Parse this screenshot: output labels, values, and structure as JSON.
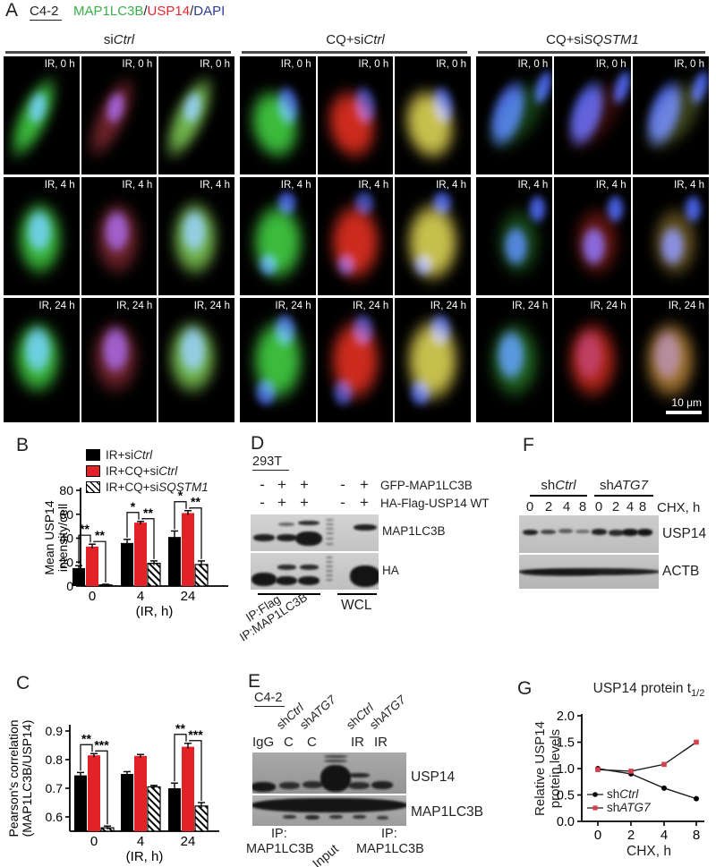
{
  "panelA": {
    "label": "A",
    "cell_line": "C4-2",
    "stain_title": [
      {
        "text": "MAP1LC3B",
        "color": "#3aaf4a"
      },
      {
        "text": "/",
        "color": "#231f20"
      },
      {
        "text": "USP14",
        "color": "#e8262d"
      },
      {
        "text": "/",
        "color": "#231f20"
      },
      {
        "text": "DAPI",
        "color": "#2e3a97"
      }
    ],
    "groups": [
      {
        "segments": [
          {
            "t": "si"
          },
          {
            "t": "Ctrl",
            "i": true
          }
        ]
      },
      {
        "segments": [
          {
            "t": "CQ+si"
          },
          {
            "t": "Ctrl",
            "i": true
          }
        ]
      },
      {
        "segments": [
          {
            "t": "CQ+si"
          },
          {
            "t": "SQSTM1",
            "i": true
          }
        ]
      }
    ],
    "row_labels": [
      "IR, 0 h",
      "IR, 4 h",
      "IR, 24 h"
    ],
    "scale_bar_label": "10 μm"
  },
  "panelB": {
    "label": "B",
    "legend": [
      {
        "swatch": "black",
        "segments": [
          {
            "t": "IR+si"
          },
          {
            "t": "Ctrl",
            "i": true
          }
        ]
      },
      {
        "swatch": "red",
        "segments": [
          {
            "t": "IR+CQ+si"
          },
          {
            "t": "Ctrl",
            "i": true
          }
        ]
      },
      {
        "swatch": "hatch",
        "segments": [
          {
            "t": "IR+CQ+si"
          },
          {
            "t": "SQSTM1",
            "i": true
          }
        ]
      }
    ]
  },
  "panelC": {
    "label": "C"
  },
  "panelD": {
    "label": "D",
    "cell_line": "293T",
    "marker_rows": [
      {
        "markers": [
          "-",
          "+",
          "+",
          "-",
          "+"
        ],
        "label": "GFP-MAP1LC3B"
      },
      {
        "markers": [
          "-",
          "+",
          "+",
          "-",
          "+"
        ],
        "label": "HA-Flag-USP14 WT"
      }
    ],
    "blot_labels": [
      "MAP1LC3B",
      "HA"
    ],
    "ip_label_1": "IP:Flag",
    "ip_label_2": "IP:MAP1LC3B",
    "wcl_label": "WCL"
  },
  "panelE": {
    "label": "E",
    "cell_line": "C4-2",
    "diag_labels": [
      [
        {
          "t": "sh"
        },
        {
          "t": "Ctrl",
          "i": true
        }
      ],
      [
        {
          "t": "sh"
        },
        {
          "t": "ATG7",
          "i": true
        }
      ],
      [
        {
          "t": "sh"
        },
        {
          "t": "Ctrl",
          "i": true
        }
      ],
      [
        {
          "t": "sh"
        },
        {
          "t": "ATG7",
          "i": true
        }
      ]
    ],
    "lane_labels": [
      "IgG",
      "C",
      "C",
      "IR",
      "IR"
    ],
    "blot_labels": [
      "USP14",
      "MAP1LC3B"
    ],
    "bottom_left_line1": "IP:",
    "bottom_left_line2": "MAP1LC3B",
    "bottom_mid": "Input",
    "bottom_right_line1": "IP:",
    "bottom_right_line2": "MAP1LC3B"
  },
  "panelF": {
    "label": "F",
    "groups": [
      [
        {
          "t": "sh"
        },
        {
          "t": "Ctrl",
          "i": true
        }
      ],
      [
        {
          "t": "sh"
        },
        {
          "t": "ATG7",
          "i": true
        }
      ]
    ],
    "lane_times": [
      "0",
      "2",
      "4",
      "8",
      "0",
      "2",
      "4",
      "8"
    ],
    "time_unit": "CHX, h",
    "blot_labels": [
      "USP14",
      "ACTB"
    ]
  },
  "panelG": {
    "label": "G",
    "title_main": "USP14 protein t",
    "title_sub": "1/2",
    "legend": [
      {
        "marker": "circle",
        "color": "#000000",
        "segments": [
          {
            "t": "sh"
          },
          {
            "t": "Ctrl",
            "i": true
          }
        ]
      },
      {
        "marker": "square",
        "color": "#d6404e",
        "segments": [
          {
            "t": "sh"
          },
          {
            "t": "ATG7",
            "i": true
          }
        ]
      }
    ]
  },
  "chart_data": [
    {
      "id": "B",
      "type": "bar",
      "title": "",
      "categories": [
        "0",
        "4",
        "24"
      ],
      "xlabel": "(IR, h)",
      "ylabel_lines": [
        "Mean USP14",
        "intensity/cell"
      ],
      "ylim": [
        0,
        80
      ],
      "yticks": [
        0,
        20,
        40,
        60,
        80
      ],
      "series": [
        {
          "name": "IR+siCtrl",
          "color": "#000000",
          "values": [
            15,
            36,
            41
          ],
          "errors": [
            2,
            3,
            5
          ]
        },
        {
          "name": "IR+CQ+siCtrl",
          "color": "#e32227",
          "values": [
            33,
            53,
            61
          ],
          "errors": [
            2,
            1,
            2
          ]
        },
        {
          "name": "IR+CQ+siSQSTM1",
          "color": "hatch",
          "values": [
            1,
            19,
            18
          ],
          "errors": [
            0.5,
            2,
            3
          ]
        }
      ],
      "significance": [
        {
          "group": 0,
          "pairs": [
            {
              "from": 0,
              "to": 1,
              "stars": "**"
            },
            {
              "from": 1,
              "to": 2,
              "stars": "**"
            }
          ]
        },
        {
          "group": 1,
          "pairs": [
            {
              "from": 0,
              "to": 1,
              "stars": "*"
            },
            {
              "from": 1,
              "to": 2,
              "stars": "**"
            }
          ]
        },
        {
          "group": 2,
          "pairs": [
            {
              "from": 0,
              "to": 1,
              "stars": "*"
            },
            {
              "from": 1,
              "to": 2,
              "stars": "**"
            }
          ]
        }
      ]
    },
    {
      "id": "C",
      "type": "bar",
      "title": "",
      "categories": [
        "0",
        "4",
        "24"
      ],
      "xlabel": "(IR, h)",
      "ylabel_lines": [
        "Pearson's correlation",
        "(MAP1LC3B/USP14)"
      ],
      "ylim": [
        0.55,
        0.9
      ],
      "yticks": [
        0.6,
        0.7,
        0.8,
        0.9
      ],
      "series": [
        {
          "name": "IR+siCtrl",
          "color": "#000000",
          "values": [
            0.745,
            0.75,
            0.7
          ],
          "errors": [
            0.01,
            0.008,
            0.018
          ]
        },
        {
          "name": "IR+CQ+siCtrl",
          "color": "#e32227",
          "values": [
            0.815,
            0.813,
            0.845
          ],
          "errors": [
            0.006,
            0.005,
            0.012
          ]
        },
        {
          "name": "IR+CQ+siSQSTM1",
          "color": "hatch",
          "values": [
            0.562,
            0.705,
            0.638
          ],
          "errors": [
            0.006,
            0.005,
            0.012
          ]
        }
      ],
      "significance": [
        {
          "group": 0,
          "pairs": [
            {
              "from": 0,
              "to": 1,
              "stars": "**"
            },
            {
              "from": 1,
              "to": 2,
              "stars": "***"
            }
          ]
        },
        {
          "group": 2,
          "pairs": [
            {
              "from": 0,
              "to": 1,
              "stars": "**"
            },
            {
              "from": 1,
              "to": 2,
              "stars": "***"
            }
          ]
        }
      ]
    },
    {
      "id": "G",
      "type": "line",
      "title": "USP14 protein t1/2",
      "x": [
        0,
        2,
        4,
        8
      ],
      "xlabel": "CHX, h",
      "ylabel_lines": [
        "Relative USP14",
        "protein levels"
      ],
      "ylim": [
        0,
        2
      ],
      "yticks": [
        "0.0",
        "0.5",
        "1.0",
        "1.5",
        "2.0"
      ],
      "series": [
        {
          "name": "shCtrl",
          "color": "#000000",
          "marker": "circle",
          "values": [
            1.0,
            0.9,
            0.63,
            0.43
          ]
        },
        {
          "name": "shATG7",
          "color": "#d6404e",
          "marker": "square",
          "values": [
            0.98,
            0.95,
            1.08,
            1.5
          ]
        }
      ]
    }
  ]
}
